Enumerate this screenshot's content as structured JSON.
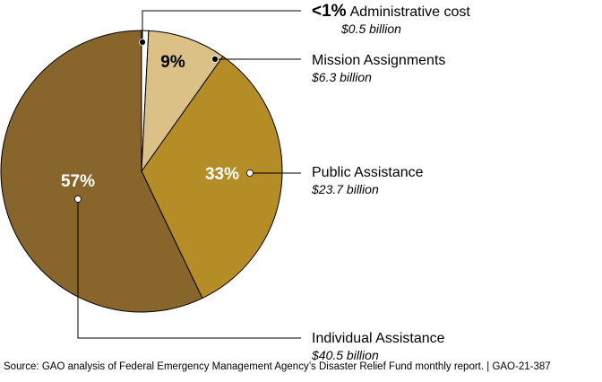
{
  "chart_data": {
    "type": "pie",
    "slices": [
      {
        "name": "Administrative cost",
        "percent_label": "<1%",
        "percent": 0.8,
        "amount": "$0.5 billion",
        "value": 0.5,
        "color": "#ffffff"
      },
      {
        "name": "Mission Assignments",
        "percent_label": "9%",
        "percent": 9,
        "amount": "$6.3 billion",
        "value": 6.3,
        "color": "#dcc187"
      },
      {
        "name": "Public Assistance",
        "percent_label": "33%",
        "percent": 33,
        "amount": "$23.7 billion",
        "value": 23.7,
        "color": "#b58d27"
      },
      {
        "name": "Individual Assistance",
        "percent_label": "57%",
        "percent": 57,
        "amount": "$40.5 billion",
        "value": 40.5,
        "color": "#87652b"
      }
    ]
  },
  "source_text": "Source: GAO analysis of Federal Emergency Management Agency’s Disaster Relief Fund monthly report.  |  GAO-21-387"
}
